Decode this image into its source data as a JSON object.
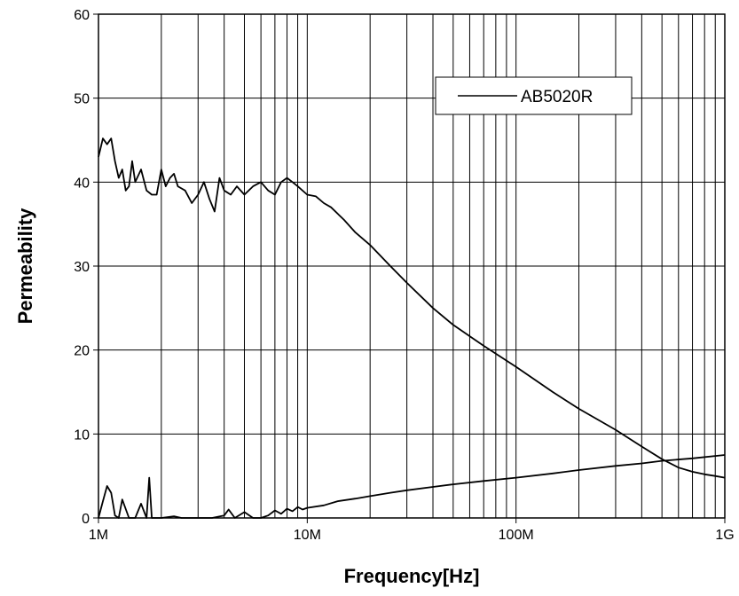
{
  "chart_data": {
    "type": "line",
    "xlabel": "Frequency[Hz]",
    "ylabel": "Permeability",
    "x_scale": "log",
    "xlim": [
      1000000,
      1000000000
    ],
    "ylim": [
      0,
      60
    ],
    "x_ticks": [
      {
        "value": 1000000,
        "label": "1M"
      },
      {
        "value": 10000000,
        "label": "10M"
      },
      {
        "value": 100000000,
        "label": "100M"
      },
      {
        "value": 1000000000,
        "label": "1G"
      }
    ],
    "y_ticks": [
      {
        "value": 0,
        "label": "0"
      },
      {
        "value": 10,
        "label": "10"
      },
      {
        "value": 20,
        "label": "20"
      },
      {
        "value": 30,
        "label": "30"
      },
      {
        "value": 40,
        "label": "40"
      },
      {
        "value": 50,
        "label": "50"
      },
      {
        "value": 60,
        "label": "60"
      }
    ],
    "grid": {
      "vertical": true,
      "horizontal": true
    },
    "legend": {
      "position": "top-right",
      "entries": [
        "AB5020R"
      ]
    },
    "series": [
      {
        "name": "AB5020R",
        "x": [
          1000000,
          1050000,
          1100000,
          1150000,
          1200000,
          1250000,
          1300000,
          1350000,
          1400000,
          1450000,
          1500000,
          1600000,
          1700000,
          1800000,
          1900000,
          2000000,
          2100000,
          2200000,
          2300000,
          2400000,
          2600000,
          2800000,
          3000000,
          3200000,
          3400000,
          3600000,
          3800000,
          4000000,
          4300000,
          4600000,
          5000000,
          5500000,
          6000000,
          6500000,
          7000000,
          7500000,
          8000000,
          8500000,
          9000000,
          10000000,
          11000000,
          12000000,
          13000000,
          15000000,
          17000000,
          20000000,
          25000000,
          30000000,
          40000000,
          50000000,
          70000000,
          100000000,
          150000000,
          200000000,
          300000000,
          400000000,
          500000000,
          600000000,
          700000000,
          800000000,
          900000000,
          1000000000
        ],
        "y": [
          43,
          45.2,
          44.5,
          45.2,
          42.5,
          40.5,
          41.5,
          39,
          39.5,
          42.5,
          40,
          41.5,
          39,
          38.5,
          38.5,
          41.5,
          39.5,
          40.5,
          41,
          39.5,
          39,
          37.5,
          38.5,
          40,
          38,
          36.5,
          40.5,
          39,
          38.5,
          39.5,
          38.5,
          39.5,
          40,
          39,
          38.5,
          40,
          40.5,
          40,
          39.5,
          38.5,
          38.3,
          37.5,
          37,
          35.5,
          34,
          32.5,
          30,
          28,
          25,
          23,
          20.5,
          18,
          15,
          13,
          10.5,
          8.5,
          7,
          6,
          5.5,
          5.2,
          5,
          4.8
        ]
      },
      {
        "name": "",
        "x": [
          1000000,
          1050000,
          1100000,
          1150000,
          1200000,
          1250000,
          1300000,
          1400000,
          1500000,
          1600000,
          1700000,
          1750000,
          1800000,
          1850000,
          1900000,
          2000000,
          2300000,
          2500000,
          3000000,
          3500000,
          4000000,
          4200000,
          4500000,
          5000000,
          5500000,
          6000000,
          6500000,
          7000000,
          7500000,
          8000000,
          8500000,
          9000000,
          9500000,
          10000000,
          12000000,
          14000000,
          17000000,
          20000000,
          25000000,
          30000000,
          40000000,
          50000000,
          70000000,
          100000000,
          150000000,
          200000000,
          300000000,
          400000000,
          500000000,
          700000000,
          1000000000
        ],
        "y": [
          0,
          2,
          3.8,
          3,
          0.3,
          0,
          2.2,
          0,
          0,
          1.7,
          0,
          4.8,
          0,
          0,
          0,
          0,
          0.2,
          0,
          0,
          0,
          0.3,
          1,
          0,
          0.7,
          0,
          0,
          0.3,
          0.9,
          0.5,
          1.1,
          0.8,
          1.3,
          1.0,
          1.2,
          1.5,
          2,
          2.3,
          2.6,
          3,
          3.3,
          3.7,
          4,
          4.4,
          4.8,
          5.3,
          5.7,
          6.2,
          6.5,
          6.8,
          7.1,
          7.5
        ]
      }
    ]
  }
}
